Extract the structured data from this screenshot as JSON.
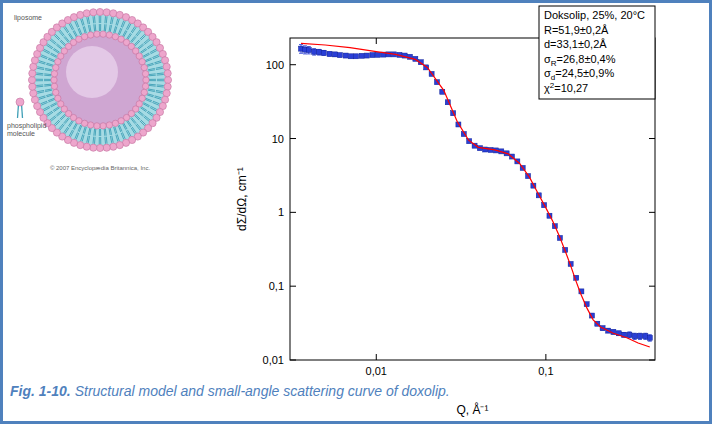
{
  "chart_data": {
    "type": "scatter",
    "log": true,
    "grid": false,
    "x_label": "Q, Å⁻¹",
    "y_label": "dΣ/dΩ, cm⁻¹",
    "xlim": [
      0.0031,
      0.44
    ],
    "ylim": [
      0.01,
      230
    ],
    "xticks": [
      {
        "value": 0.01,
        "label": "0,01"
      },
      {
        "value": 0.1,
        "label": "0,1"
      }
    ],
    "yticks": [
      {
        "value": 0.01,
        "label": "0,01"
      },
      {
        "value": 0.1,
        "label": "0,1"
      },
      1,
      10,
      100
    ],
    "annotation": {
      "lines": [
        "Doksolip, 25%, 20°C",
        "R=51,9±0,2Å",
        "d=33,1±0,2Å",
        {
          "main": "σ",
          "sub": "R",
          "tail": "=26,8±0,4%"
        },
        {
          "main": "σ",
          "sub": "d",
          "tail": "=24,5±0,9%"
        },
        {
          "main": "χ",
          "sup": "2",
          "tail": "=10,27"
        }
      ]
    },
    "series": [
      {
        "type": "scatter",
        "marker": "square",
        "color": "#2a3fd6",
        "x": [
          0.0036,
          0.0038,
          0.004,
          0.0043,
          0.0046,
          0.0049,
          0.0053,
          0.0057,
          0.0061,
          0.0066,
          0.0071,
          0.0076,
          0.0082,
          0.0088,
          0.0095,
          0.0102,
          0.011,
          0.0118,
          0.0127,
          0.0137,
          0.0147,
          0.0158,
          0.017,
          0.0183,
          0.0197,
          0.0212,
          0.0228,
          0.0245,
          0.0264,
          0.0284,
          0.0305,
          0.0328,
          0.0353,
          0.038,
          0.0408,
          0.0439,
          0.0472,
          0.0508,
          0.0546,
          0.0587,
          0.0631,
          0.0679,
          0.073,
          0.0785,
          0.0844,
          0.0908,
          0.0976,
          0.105,
          0.113,
          0.121,
          0.13,
          0.14,
          0.151,
          0.162,
          0.174,
          0.187,
          0.201,
          0.216,
          0.233,
          0.25,
          0.269,
          0.289,
          0.311,
          0.334,
          0.359,
          0.386,
          0.41
        ],
        "values": [
          165,
          160,
          158,
          150,
          148,
          145,
          140,
          138,
          135,
          133,
          130,
          130,
          132,
          133,
          135,
          136,
          137,
          138,
          138,
          136,
          133,
          128,
          120,
          108,
          92,
          75,
          58,
          43,
          31,
          22,
          15.5,
          11.5,
          9.2,
          8.0,
          7.4,
          7.1,
          7.0,
          6.9,
          6.7,
          6.3,
          5.7,
          4.9,
          4.0,
          3.1,
          2.3,
          1.7,
          1.25,
          0.9,
          0.65,
          0.45,
          0.31,
          0.2,
          0.13,
          0.085,
          0.057,
          0.04,
          0.031,
          0.027,
          0.025,
          0.024,
          0.023,
          0.022,
          0.022,
          0.021,
          0.021,
          0.021,
          0.02
        ],
        "errors": [
          22,
          20,
          18,
          15,
          13,
          11,
          9,
          8,
          7,
          6,
          5,
          5,
          4,
          4,
          4,
          3,
          3,
          3,
          3,
          3,
          3,
          3,
          2,
          2,
          2,
          2,
          1.5,
          1,
          1,
          0.5,
          0.3,
          0.2,
          0.2,
          0.15,
          0.15,
          0.15,
          0.15,
          0.15,
          0.15,
          0.15,
          0.1,
          0.1,
          0.08,
          0.06,
          0.05,
          0.04,
          0.03,
          0.02,
          0.015,
          0.01,
          0.008,
          0.006,
          0.004,
          0.003,
          0.002,
          0.0015,
          0.0015,
          0.0015,
          0.0015,
          0.0015,
          0.0015,
          0.0015,
          0.002,
          0.002,
          0.002,
          0.002,
          0.002
        ]
      },
      {
        "type": "line",
        "line_style": "solid",
        "color": "#ff0000",
        "x": [
          0.0036,
          0.005,
          0.007,
          0.01,
          0.013,
          0.017,
          0.02,
          0.025,
          0.03,
          0.035,
          0.04,
          0.05,
          0.06,
          0.07,
          0.08,
          0.09,
          0.1,
          0.11,
          0.12,
          0.13,
          0.14,
          0.15,
          0.16,
          0.175,
          0.19,
          0.21,
          0.25,
          0.3,
          0.35,
          0.41
        ],
        "values": [
          195,
          185,
          170,
          150,
          138,
          118,
          92,
          45,
          17,
          9.5,
          7.6,
          7.0,
          6.2,
          4.6,
          3.0,
          1.8,
          1.15,
          0.75,
          0.48,
          0.3,
          0.19,
          0.12,
          0.08,
          0.05,
          0.035,
          0.028,
          0.023,
          0.02,
          0.017,
          0.015
        ]
      }
    ]
  },
  "figure": {
    "caption_label": "Fig. 1-10.",
    "caption_text": "Structural model and small-angle scattering curve of doxolip.",
    "illustration": {
      "title": "liposome",
      "part_label": "phospholipid molecule",
      "credit": "© 2007 Encyclopædia Britannica, Inc."
    }
  }
}
